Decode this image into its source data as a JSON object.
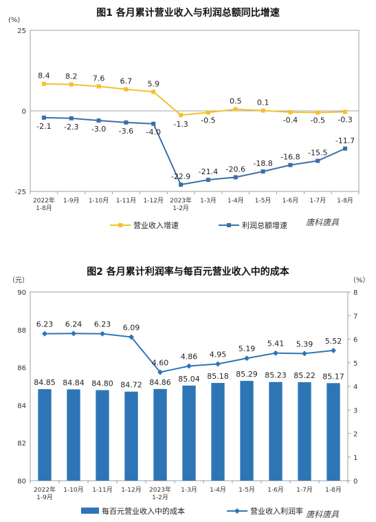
{
  "chart_data": [
    {
      "type": "line",
      "title": "图1  各月累计营业收入与利润总额同比增速",
      "ylabel": "(%)",
      "ylim": [
        -25,
        25
      ],
      "yticks": [
        "25",
        "0",
        "-25"
      ],
      "categories": [
        "2022年\n1-8月",
        "1-9月",
        "1-10月",
        "1-11月",
        "1-12月",
        "2023年\n1-2月",
        "1-3月",
        "1-4月",
        "1-5月",
        "1-6月",
        "1-7月",
        "1-8月"
      ],
      "series": [
        {
          "name": "营业收入增速",
          "color": "#F2C12E",
          "values": [
            8.4,
            8.2,
            7.6,
            6.7,
            5.9,
            -1.3,
            -0.5,
            0.5,
            0.1,
            -0.4,
            -0.5,
            -0.3
          ],
          "labels": [
            "8.4",
            "8.2",
            "7.6",
            "6.7",
            "5.9",
            "-1.3",
            "-0.5",
            "0.5",
            "0.1",
            "-0.4",
            "-0.5",
            "-0.3"
          ]
        },
        {
          "name": "利润总额增速",
          "color": "#3B6FA8",
          "values": [
            -2.1,
            -2.3,
            -3.0,
            -3.6,
            -4.0,
            -22.9,
            -21.4,
            -20.6,
            -18.8,
            -16.8,
            -15.5,
            -11.7
          ],
          "labels": [
            "-2.1",
            "-2.3",
            "-3.0",
            "-3.6",
            "-4.0",
            "-22.9",
            "-21.4",
            "-20.6",
            "-18.8",
            "-16.8",
            "-15.5",
            "-11.7"
          ]
        }
      ],
      "legend": "bottom",
      "watermark": "唐科唐具"
    },
    {
      "type": "bar",
      "title": "图2  各月累计利润率与每百元营业收入中的成本",
      "ylabel": "（元）",
      "y2label": "（%）",
      "ylim": [
        80,
        90
      ],
      "y2lim": [
        0,
        8
      ],
      "yticks": [
        "90",
        "88",
        "86",
        "84",
        "82",
        "80"
      ],
      "y2ticks": [
        "8",
        "7",
        "6",
        "5",
        "4",
        "3",
        "2",
        "1",
        "0"
      ],
      "categories": [
        "2022年\n1-9月",
        "1-10月",
        "1-11月",
        "1-12月",
        "2023年\n1-2月",
        "1-3月",
        "1-4月",
        "1-5月",
        "1-6月",
        "1-7月",
        "1-8月"
      ],
      "series": [
        {
          "name": "每百元营业收入中的成本",
          "color": "#2E75B6",
          "type": "bar",
          "axis": "left",
          "values": [
            84.85,
            84.84,
            84.8,
            84.72,
            84.86,
            85.04,
            85.18,
            85.29,
            85.23,
            85.22,
            85.17
          ],
          "labels": [
            "84.85",
            "84.84",
            "84.80",
            "84.72",
            "84.86",
            "85.04",
            "85.18",
            "85.29",
            "85.23",
            "85.22",
            "85.17"
          ]
        },
        {
          "name": "营业收入利润率",
          "color": "#2E75B6",
          "type": "line",
          "axis": "right",
          "values": [
            6.23,
            6.24,
            6.23,
            6.09,
            4.6,
            4.86,
            4.95,
            5.19,
            5.41,
            5.39,
            5.52
          ],
          "labels": [
            "6.23",
            "6.24",
            "6.23",
            "6.09",
            "4.60",
            "4.86",
            "4.95",
            "5.19",
            "5.41",
            "5.39",
            "5.52"
          ]
        }
      ],
      "legend": "bottom",
      "watermark": "唐科唐具"
    }
  ]
}
